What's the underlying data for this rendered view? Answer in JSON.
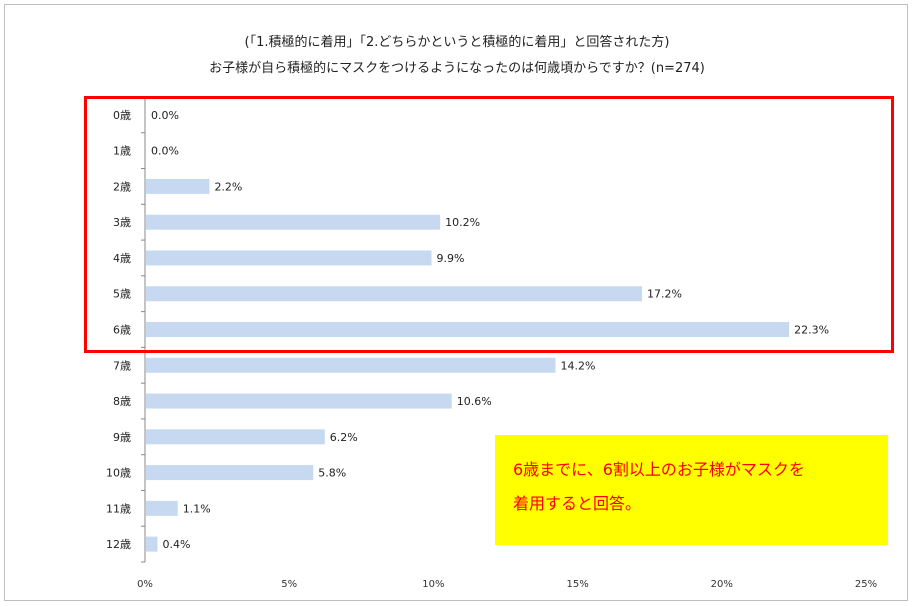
{
  "title_line1": "(「1.積極的に着用」「2.どちらかというと積極的に着用」と回答された方)",
  "title_line2": "お子様が自ら積極的にマスクをつけるようになったのは何歳頃からですか？(n=274)",
  "callout": {
    "line1": "6歳までに、6割以上のお子様がマスクを",
    "line2": "着用すると回答。"
  },
  "colors": {
    "bar": "#c6d9f1",
    "highlight_border": "#ff0000",
    "callout_bg": "#ffff00",
    "callout_text": "#ff0000"
  },
  "chart_data": {
    "type": "bar",
    "orientation": "horizontal",
    "categories": [
      "0歳",
      "1歳",
      "2歳",
      "3歳",
      "4歳",
      "5歳",
      "6歳",
      "7歳",
      "8歳",
      "9歳",
      "10歳",
      "11歳",
      "12歳"
    ],
    "values": [
      0.0,
      0.0,
      2.2,
      10.2,
      9.9,
      17.2,
      22.3,
      14.2,
      10.6,
      6.2,
      5.8,
      1.1,
      0.4
    ],
    "value_labels": [
      "0.0%",
      "0.0%",
      "2.2%",
      "10.2%",
      "9.9%",
      "17.2%",
      "22.3%",
      "14.2%",
      "10.6%",
      "6.2%",
      "5.8%",
      "1.1%",
      "0.4%"
    ],
    "xlim": [
      0,
      25
    ],
    "xticks": [
      0,
      5,
      10,
      15,
      20,
      25
    ],
    "xtick_labels": [
      "0%",
      "5%",
      "10%",
      "15%",
      "20%",
      "25%"
    ],
    "grid": false,
    "legend": false,
    "highlighted_categories": [
      "0歳",
      "1歳",
      "2歳",
      "3歳",
      "4歳",
      "5歳",
      "6歳"
    ]
  }
}
